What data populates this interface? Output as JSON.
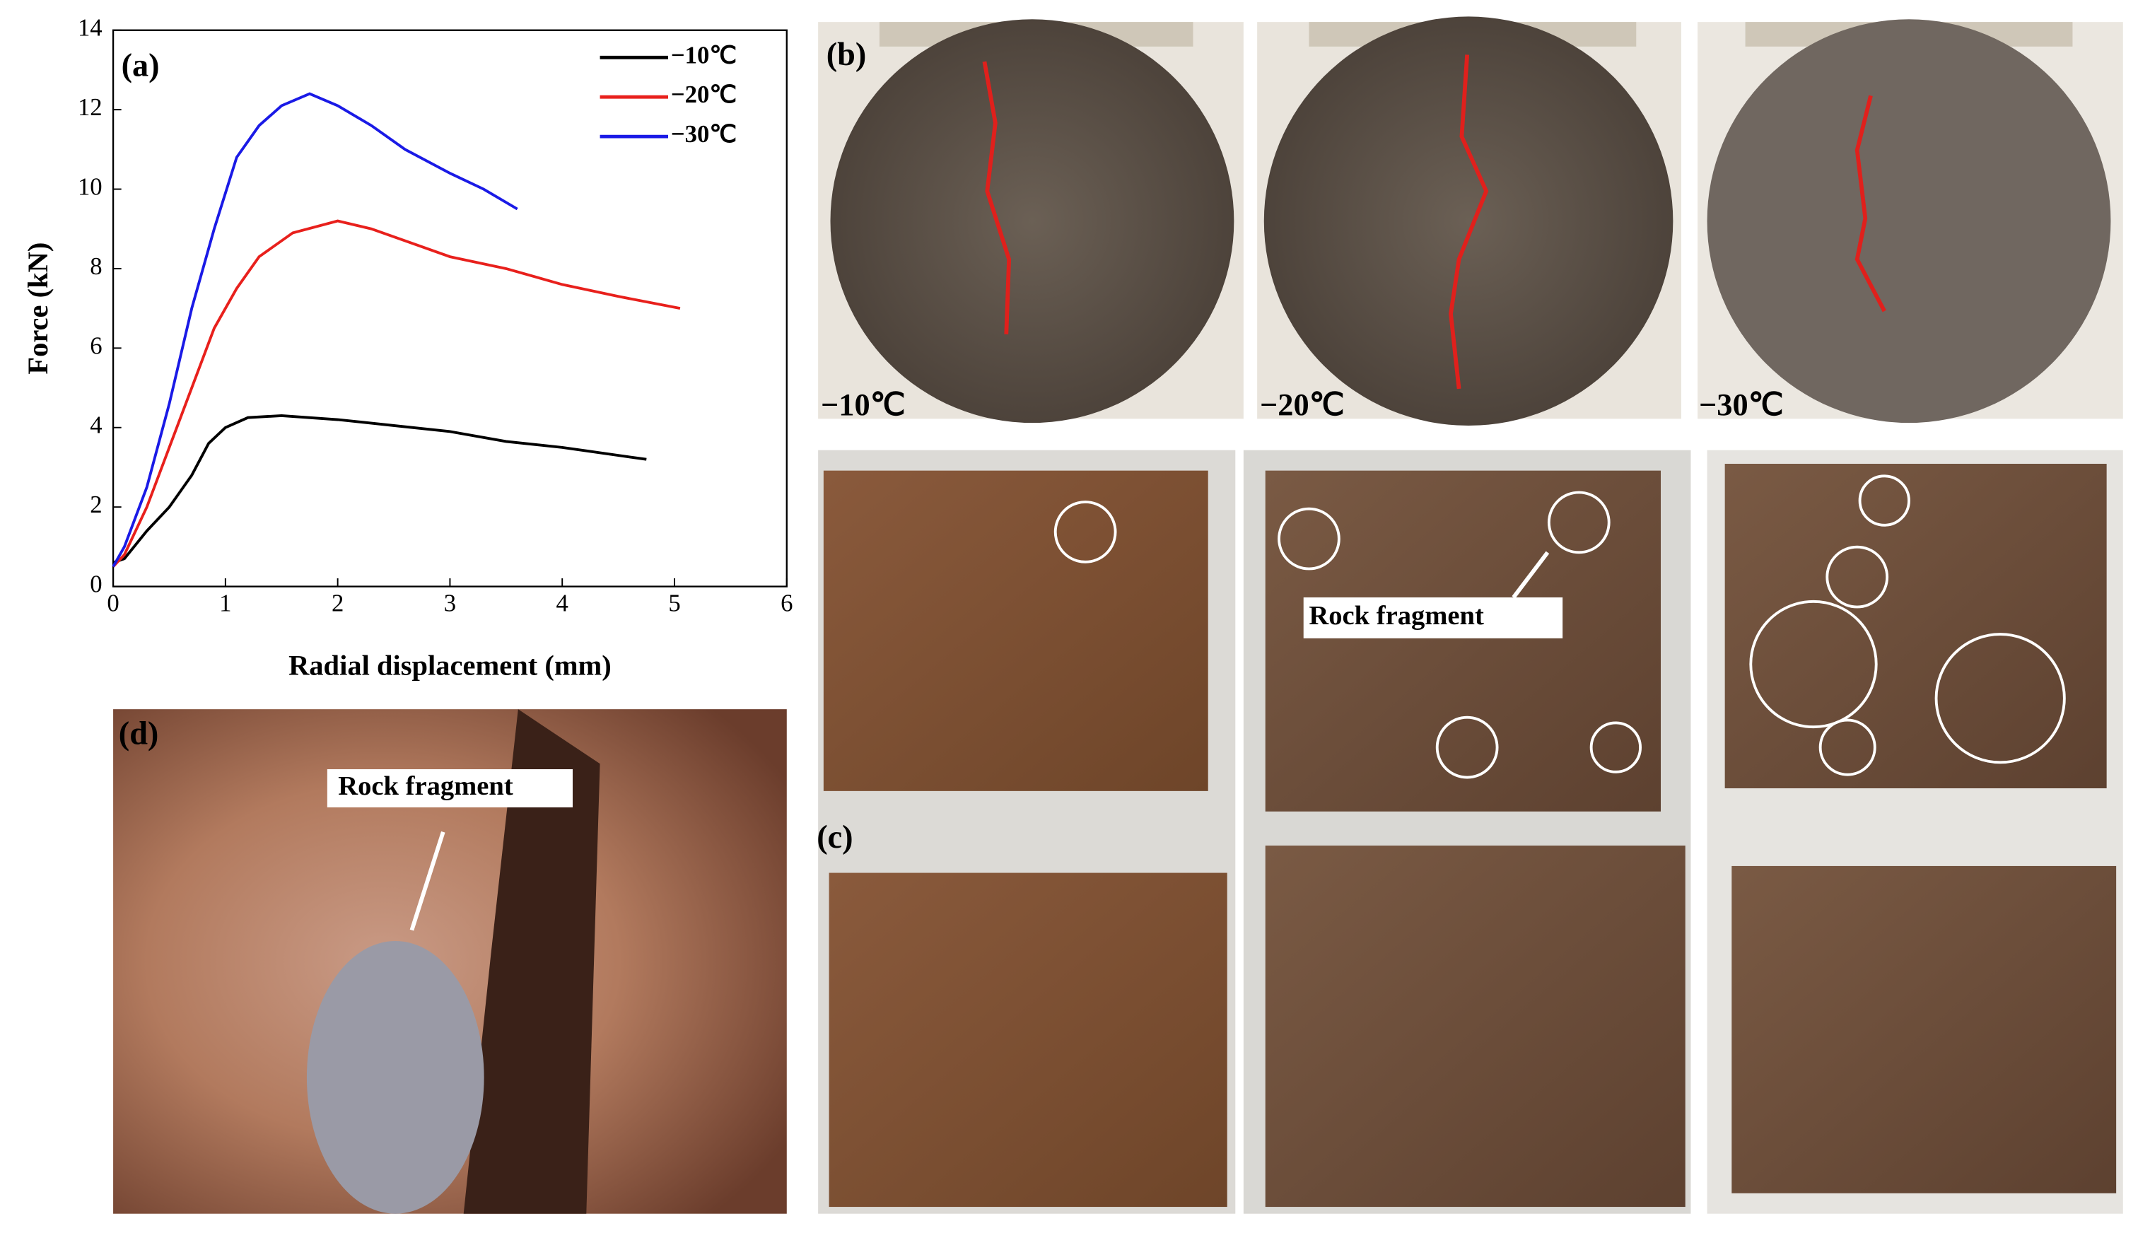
{
  "chart_data": {
    "type": "line",
    "panel_label": "(a)",
    "x_label": "Radial displacement (mm)",
    "y_label": "Force (kN)",
    "xlim": [
      0,
      6
    ],
    "ylim": [
      0,
      14
    ],
    "xticks": [
      0,
      1,
      2,
      3,
      4,
      5,
      6
    ],
    "yticks": [
      0,
      2,
      4,
      6,
      8,
      10,
      12,
      14
    ],
    "legend": "upper right",
    "series": [
      {
        "name": "−10℃",
        "color": "#000000",
        "x": [
          0,
          0.1,
          0.3,
          0.5,
          0.7,
          0.85,
          1.0,
          1.2,
          1.5,
          2.0,
          2.5,
          3.0,
          3.5,
          4.0,
          4.5,
          4.75
        ],
        "values": [
          0.6,
          0.7,
          1.4,
          2.0,
          2.8,
          3.6,
          4.0,
          4.25,
          4.3,
          4.2,
          4.05,
          3.9,
          3.65,
          3.5,
          3.3,
          3.2
        ]
      },
      {
        "name": "−20℃",
        "color": "#e8201c",
        "x": [
          0,
          0.1,
          0.3,
          0.5,
          0.7,
          0.9,
          1.1,
          1.3,
          1.6,
          2.0,
          2.3,
          2.7,
          3.0,
          3.5,
          4.0,
          4.5,
          5.05
        ],
        "values": [
          0.5,
          0.8,
          2.0,
          3.5,
          5.0,
          6.5,
          7.5,
          8.3,
          8.9,
          9.2,
          9.0,
          8.6,
          8.3,
          8.0,
          7.6,
          7.3,
          7.0
        ]
      },
      {
        "name": "−30℃",
        "color": "#1a1ae6",
        "x": [
          0,
          0.1,
          0.3,
          0.5,
          0.7,
          0.9,
          1.1,
          1.3,
          1.5,
          1.75,
          2.0,
          2.3,
          2.6,
          3.0,
          3.3,
          3.6
        ],
        "values": [
          0.5,
          1.0,
          2.5,
          4.6,
          7.0,
          9.0,
          10.8,
          11.6,
          12.1,
          12.4,
          12.1,
          11.6,
          11.0,
          10.4,
          10.0,
          9.5
        ]
      }
    ]
  },
  "panels": {
    "b": {
      "label": "(b)",
      "captions": [
        "−10℃",
        "−20℃",
        "−30℃"
      ]
    },
    "c": {
      "label": "(c)",
      "annotation": "Rock fragment"
    },
    "d": {
      "label": "(d)",
      "annotation": "Rock fragment"
    }
  }
}
